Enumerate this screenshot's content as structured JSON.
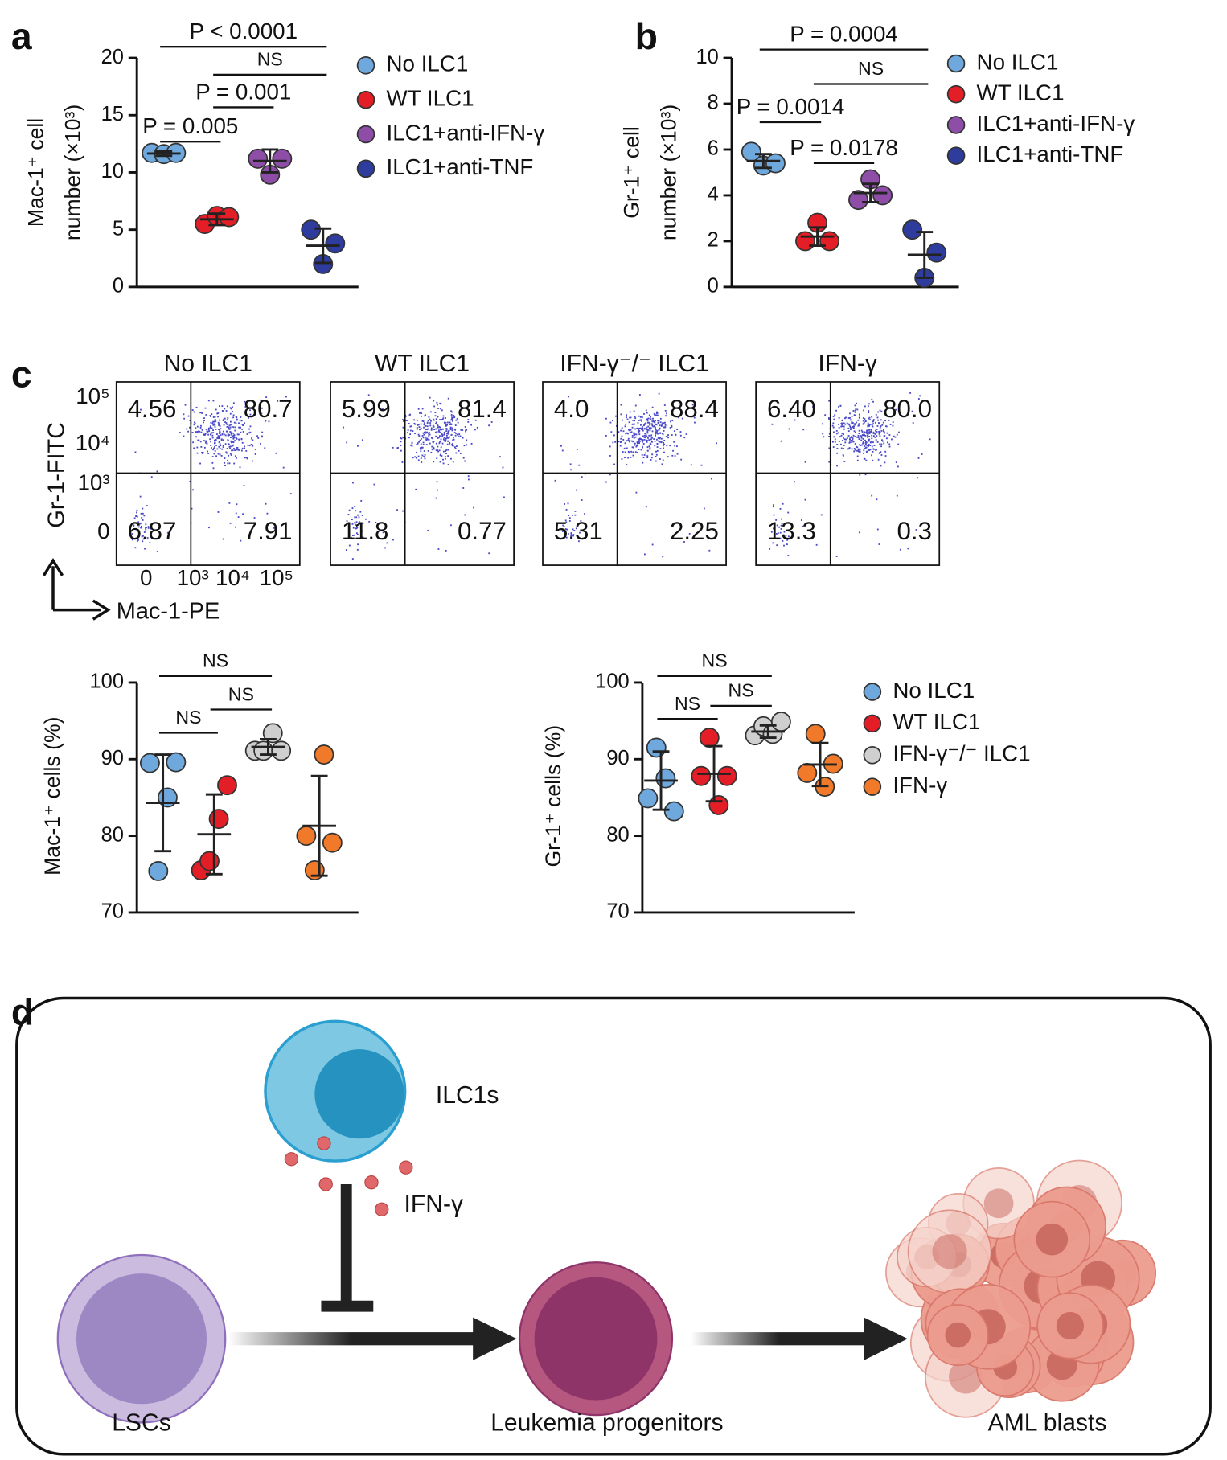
{
  "panel_letters": [
    "a",
    "b",
    "c",
    "d"
  ],
  "chart_data": [
    {
      "type": "dot",
      "y_label": [
        "Mac-1⁺ cell",
        "number (×10³)"
      ],
      "ylim": [
        0,
        20
      ],
      "yticks": [
        0,
        5,
        10,
        15,
        20
      ],
      "series": [
        {
          "name": "No ILC1",
          "color": "#6fa8dc",
          "values": [
            11.7,
            11.6,
            11.7
          ],
          "mean": 11.65,
          "sd": 0.2
        },
        {
          "name": "WT ILC1",
          "color": "#e41e26",
          "values": [
            5.5,
            6.2,
            6.1
          ],
          "mean": 5.9,
          "sd": 0.5
        },
        {
          "name": "ILC1+anti-IFN-γ",
          "color": "#8e4ea8",
          "values": [
            11.2,
            9.8,
            11.2
          ],
          "mean": 11.0,
          "sd": 1.0
        },
        {
          "name": "ILC1+anti-TNF",
          "color": "#2e3c9e",
          "values": [
            5.0,
            2.0,
            3.8
          ],
          "mean": 3.6,
          "sd": 1.5
        }
      ],
      "comparisons": [
        {
          "text": "P < 0.0001",
          "between": [
            "No ILC1",
            "ILC1+anti-TNF"
          ]
        },
        {
          "text": "NS",
          "between": [
            "WT ILC1",
            "ILC1+anti-TNF"
          ]
        },
        {
          "text": "P = 0.001",
          "between": [
            "WT ILC1",
            "ILC1+anti-IFN-γ"
          ]
        },
        {
          "text": "P = 0.005",
          "between": [
            "No ILC1",
            "WT ILC1"
          ]
        }
      ]
    },
    {
      "type": "dot",
      "y_label": [
        "Gr-1⁺ cell",
        "number (×10³)"
      ],
      "ylim": [
        0,
        10
      ],
      "yticks": [
        0,
        2,
        4,
        6,
        8,
        10
      ],
      "series": [
        {
          "name": "No ILC1",
          "color": "#6fa8dc",
          "values": [
            5.9,
            5.3,
            5.4
          ],
          "mean": 5.5,
          "sd": 0.3
        },
        {
          "name": "WT ILC1",
          "color": "#e41e26",
          "values": [
            2.0,
            2.8,
            2.0
          ],
          "mean": 2.2,
          "sd": 0.4
        },
        {
          "name": "ILC1+anti-IFN-γ",
          "color": "#8e4ea8",
          "values": [
            3.8,
            4.7,
            4.0
          ],
          "mean": 4.1,
          "sd": 0.4
        },
        {
          "name": "ILC1+anti-TNF",
          "color": "#2e3c9e",
          "values": [
            2.5,
            0.4,
            1.5
          ],
          "mean": 1.4,
          "sd": 1.0
        }
      ],
      "comparisons": [
        {
          "text": "P = 0.0004",
          "between": [
            "No ILC1",
            "ILC1+anti-TNF"
          ]
        },
        {
          "text": "NS",
          "between": [
            "WT ILC1",
            "ILC1+anti-TNF"
          ]
        },
        {
          "text": "P = 0.0014",
          "between": [
            "No ILC1",
            "WT ILC1"
          ]
        },
        {
          "text": "P = 0.0178",
          "between": [
            "WT ILC1",
            "ILC1+anti-IFN-γ"
          ]
        }
      ]
    },
    {
      "type": "dot",
      "y_label": [
        "Mac-1⁺ cells (%)"
      ],
      "ylim": [
        70,
        100
      ],
      "yticks": [
        70,
        80,
        90,
        100
      ],
      "series": [
        {
          "name": "No ILC1",
          "color": "#6fa8dc",
          "values": [
            89.5,
            75.4,
            85.0,
            89.6
          ],
          "mean": 84.3,
          "sd": 6.3
        },
        {
          "name": "WT ILC1",
          "color": "#e41e26",
          "values": [
            75.5,
            76.7,
            82.2,
            86.6
          ],
          "mean": 80.2,
          "sd": 5.2
        },
        {
          "name": "IFN-γ⁻/⁻ ILC1",
          "color": "#cfcfcf",
          "values": [
            91.1,
            91.1,
            93.4,
            91.1
          ],
          "mean": 91.6,
          "sd": 1.0
        },
        {
          "name": "IFN-γ",
          "color": "#f07a2a",
          "values": [
            80.0,
            75.5,
            90.6,
            79.1
          ],
          "mean": 81.3,
          "sd": 6.5
        }
      ],
      "comparisons": [
        {
          "text": "NS",
          "between": [
            "No ILC1",
            "IFN-γ⁻/⁻ ILC1"
          ]
        },
        {
          "text": "NS",
          "between": [
            "WT ILC1",
            "IFN-γ⁻/⁻ ILC1"
          ]
        },
        {
          "text": "NS",
          "between": [
            "No ILC1",
            "WT ILC1"
          ]
        }
      ]
    },
    {
      "type": "dot",
      "y_label": [
        "Gr-1⁺ cells (%)"
      ],
      "ylim": [
        70,
        100
      ],
      "yticks": [
        70,
        80,
        90,
        100
      ],
      "series": [
        {
          "name": "No ILC1",
          "color": "#6fa8dc",
          "values": [
            84.9,
            91.5,
            87.5,
            83.2
          ],
          "mean": 87.2,
          "sd": 3.8
        },
        {
          "name": "WT ILC1",
          "color": "#e41e26",
          "values": [
            87.8,
            92.8,
            84.0,
            87.8
          ],
          "mean": 88.1,
          "sd": 3.6
        },
        {
          "name": "IFN-γ⁻/⁻ ILC1",
          "color": "#cfcfcf",
          "values": [
            93.1,
            94.3,
            93.3,
            94.9
          ],
          "mean": 93.6,
          "sd": 0.8
        },
        {
          "name": "IFN-γ",
          "color": "#f07a2a",
          "values": [
            88.2,
            93.3,
            86.4,
            89.4
          ],
          "mean": 89.3,
          "sd": 2.8
        }
      ],
      "comparisons": [
        {
          "text": "NS",
          "between": [
            "No ILC1",
            "IFN-γ⁻/⁻ ILC1"
          ]
        },
        {
          "text": "NS",
          "between": [
            "WT ILC1",
            "IFN-γ⁻/⁻ ILC1"
          ]
        },
        {
          "text": "NS",
          "between": [
            "No ILC1",
            "WT ILC1"
          ]
        }
      ]
    }
  ],
  "flow": {
    "y_label": "Gr-1-FITC",
    "x_label": "Mac-1-PE",
    "y_ticks": [
      "10⁵",
      "10⁴",
      "10³",
      "0"
    ],
    "x_ticks": [
      "0",
      "10³",
      "10⁴",
      "10⁵"
    ],
    "panels": [
      {
        "title": "No ILC1",
        "quadrants": [
          "4.56",
          "80.7",
          "6.87",
          "7.91"
        ]
      },
      {
        "title": "WT ILC1",
        "quadrants": [
          "5.99",
          "81.4",
          "11.8",
          "0.77"
        ]
      },
      {
        "title": "IFN-γ⁻/⁻ ILC1",
        "quadrants": [
          "4.0",
          "88.4",
          "5.31",
          "2.25"
        ]
      },
      {
        "title": "IFN-γ",
        "quadrants": [
          "6.40",
          "80.0",
          "13.3",
          "0.3"
        ]
      }
    ]
  },
  "diagram": {
    "ilc": "ILC1s",
    "cytokine": "IFN-γ",
    "lsc": "LSCs",
    "progenitor": "Leukemia progenitors",
    "blast": "AML blasts"
  }
}
